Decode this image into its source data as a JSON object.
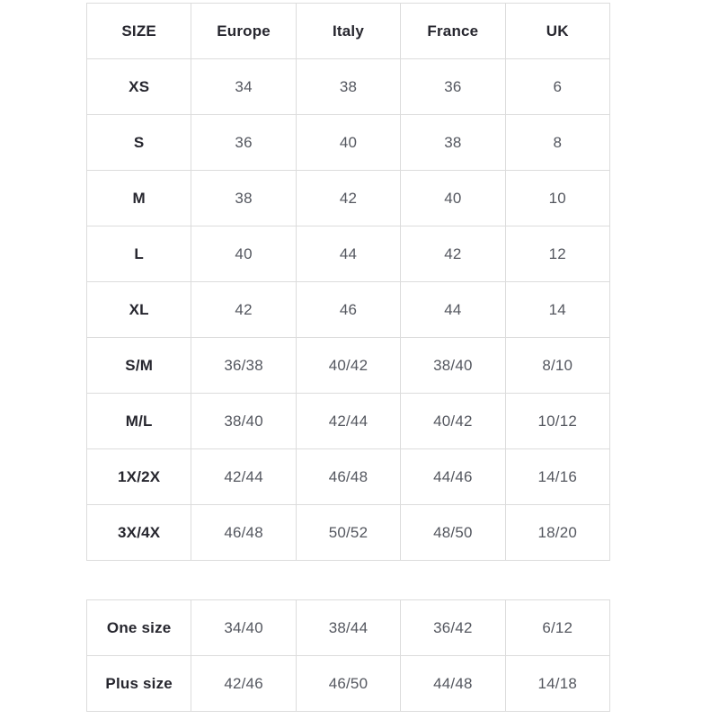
{
  "colors": {
    "background": "#ffffff",
    "border": "#dcdcdc",
    "header_text": "#26262e",
    "cell_text": "#54575f"
  },
  "size_table": {
    "headers": [
      "SIZE",
      "Europe",
      "Italy",
      "France",
      "UK"
    ],
    "rows": [
      {
        "label": "XS",
        "values": [
          "34",
          "38",
          "36",
          "6"
        ]
      },
      {
        "label": "S",
        "values": [
          "36",
          "40",
          "38",
          "8"
        ]
      },
      {
        "label": "M",
        "values": [
          "38",
          "42",
          "40",
          "10"
        ]
      },
      {
        "label": "L",
        "values": [
          "40",
          "44",
          "42",
          "12"
        ]
      },
      {
        "label": "XL",
        "values": [
          "42",
          "46",
          "44",
          "14"
        ]
      },
      {
        "label": "S/M",
        "values": [
          "36/38",
          "40/42",
          "38/40",
          "8/10"
        ]
      },
      {
        "label": "M/L",
        "values": [
          "38/40",
          "42/44",
          "40/42",
          "10/12"
        ]
      },
      {
        "label": "1X/2X",
        "values": [
          "42/44",
          "46/48",
          "44/46",
          "14/16"
        ]
      },
      {
        "label": "3X/4X",
        "values": [
          "46/48",
          "50/52",
          "48/50",
          "18/20"
        ]
      }
    ]
  },
  "special_table": {
    "rows": [
      {
        "label": "One size",
        "values": [
          "34/40",
          "38/44",
          "36/42",
          "6/12"
        ]
      },
      {
        "label": "Plus size",
        "values": [
          "42/46",
          "46/50",
          "44/48",
          "14/18"
        ]
      }
    ]
  }
}
